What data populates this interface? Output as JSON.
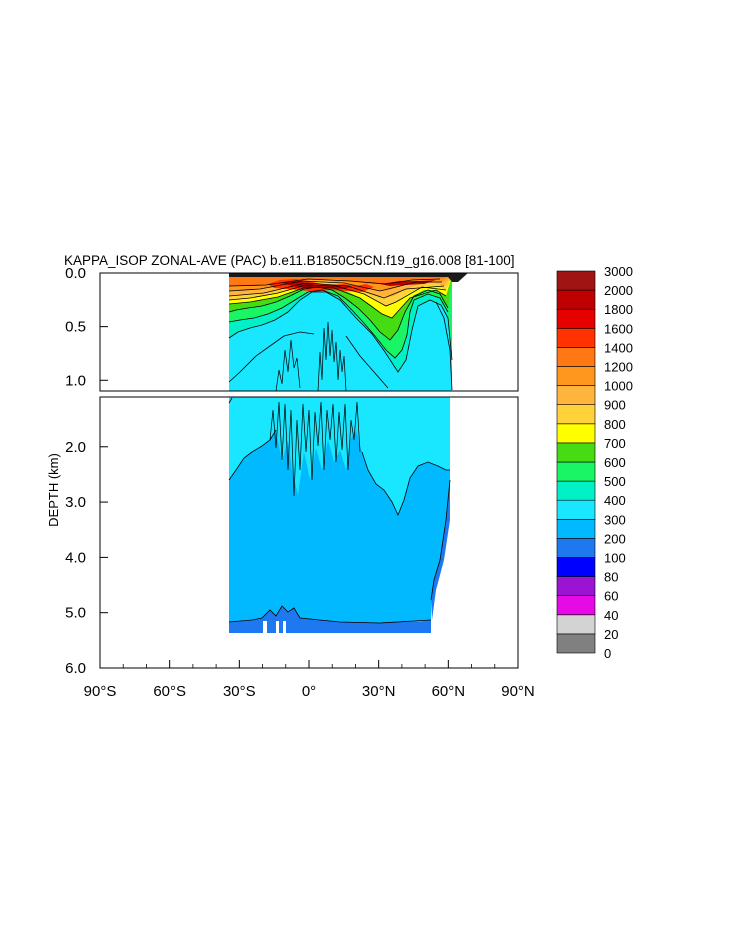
{
  "chart_data": {
    "type": "heatmap",
    "title": "KAPPA_ISOP ZONAL-AVE (PAC) b.e11.B1850C5CN.f19_g16.008 [81-100]",
    "ylabel": "DEPTH (km)",
    "xlim": [
      -90,
      90
    ],
    "x_ticks": [
      "90°S",
      "60°S",
      "30°S",
      "0°",
      "30°N",
      "60°N",
      "90°N"
    ],
    "x_tick_values": [
      -90,
      -60,
      -30,
      0,
      30,
      60,
      90
    ],
    "upper_panel": {
      "ylim": [
        0.0,
        1.1
      ],
      "y_ticks": [
        "0.0",
        "0.5",
        "1.0"
      ],
      "y_tick_values": [
        0.0,
        0.5,
        1.0
      ]
    },
    "lower_panel": {
      "ylim": [
        1.1,
        6.0
      ],
      "y_ticks": [
        "2.0",
        "3.0",
        "4.0",
        "5.0",
        "6.0"
      ],
      "y_tick_values": [
        2.0,
        3.0,
        4.0,
        5.0,
        6.0
      ]
    },
    "colorbar": {
      "levels": [
        "0",
        "20",
        "40",
        "60",
        "80",
        "100",
        "200",
        "300",
        "400",
        "500",
        "600",
        "700",
        "800",
        "900",
        "1000",
        "1200",
        "1400",
        "1600",
        "1800",
        "2000",
        "3000"
      ],
      "colors": [
        "#808080",
        "#d3d3d3",
        "#e60ae6",
        "#9b14d2",
        "#0000ff",
        "#1e78f0",
        "#00b9ff",
        "#19e6ff",
        "#00f0c8",
        "#19f564",
        "#46dc14",
        "#ffff00",
        "#ffd23c",
        "#ffb43c",
        "#ff961e",
        "#ff7814",
        "#ff3200",
        "#e60000",
        "#be0000",
        "#a01414"
      ]
    },
    "fields": [
      {
        "region": "upper ocean 0–0.3 km, 35°S–65°N",
        "value_range": [
          1000,
          3000
        ]
      },
      {
        "region": "upper ocean 0.3–0.6 km, 35°S–65°N",
        "value_range": [
          500,
          1000
        ]
      },
      {
        "region": "deep equatorial column 0.4–2.9 km, 20°S–20°N",
        "value_range": [
          300,
          400
        ]
      },
      {
        "region": "deep ocean 1.5–5.3 km, 35°S–53°N",
        "value_range": [
          200,
          300
        ]
      },
      {
        "region": "bottom layer 5.2–5.4 km",
        "value_range": [
          100,
          200
        ]
      }
    ]
  }
}
